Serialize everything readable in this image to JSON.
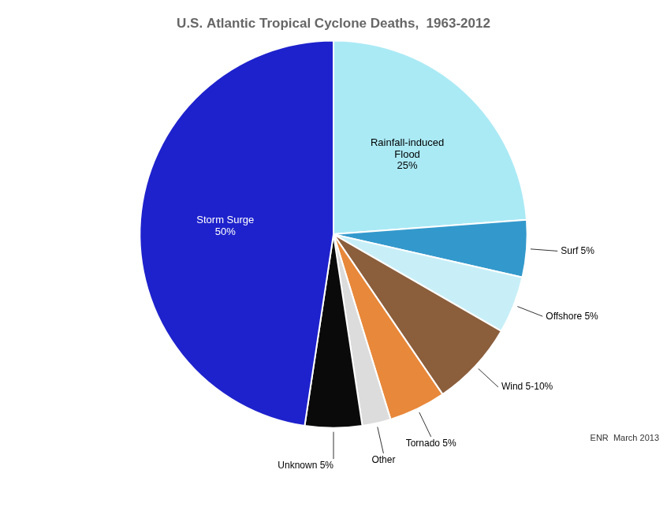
{
  "chart_data": {
    "type": "pie",
    "title": "U.S. Atlantic Tropical Cyclone Deaths,  1963-2012",
    "annotations": [
      "ENR  March 2013"
    ],
    "categories": [
      "Rainfall-induced\nFlood\n25%",
      "Surf 5%",
      "Offshore 5%",
      "Wind 5-10%",
      "Tornado 5%",
      "Other",
      "Unknown 5%",
      "Storm Surge\n50%"
    ],
    "values": [
      25,
      5,
      5,
      7.5,
      5,
      2.5,
      5,
      50
    ],
    "colors": [
      "#AAEAF5",
      "#3399CC",
      "#C8EFF8",
      "#8B5E3C",
      "#E8883A",
      "#DCDCDC",
      "#0A0A0A",
      "#1E22CC"
    ]
  }
}
